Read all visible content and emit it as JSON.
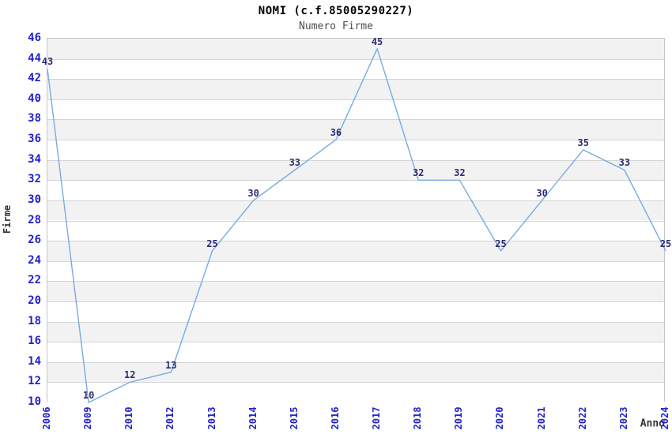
{
  "header": {
    "title": "NOMI (c.f.85005290227)",
    "subtitle": "Numero Firme"
  },
  "chart_data": {
    "type": "line",
    "title": "NOMI (c.f.85005290227)",
    "subtitle": "Numero Firme",
    "categories": [
      "2006",
      "2009",
      "2010",
      "2012",
      "2013",
      "2014",
      "2015",
      "2016",
      "2017",
      "2018",
      "2019",
      "2020",
      "2021",
      "2022",
      "2023",
      "2024"
    ],
    "values": [
      43,
      10,
      12,
      13,
      25,
      30,
      33,
      36,
      45,
      32,
      32,
      25,
      30,
      35,
      33,
      25
    ],
    "xlabel": "Anno",
    "ylabel": "Firme",
    "ylim": [
      10,
      46
    ],
    "ytick_step": 2,
    "grid": "horizontal-bands-alternating",
    "legend": "none",
    "data_labels_visible": true,
    "colors": {
      "line": "#79abdf",
      "tick_label": "#2222cc",
      "data_label": "#2b2b74",
      "band_gray": "#f2f2f2",
      "band_white": "#ffffff",
      "gridline": "#d4d4d4",
      "plot_border": "#c6c6c6",
      "title": "#000000",
      "subtitle": "#4d4d4d",
      "axis_title": "#333333",
      "background": "#ffffff"
    }
  }
}
